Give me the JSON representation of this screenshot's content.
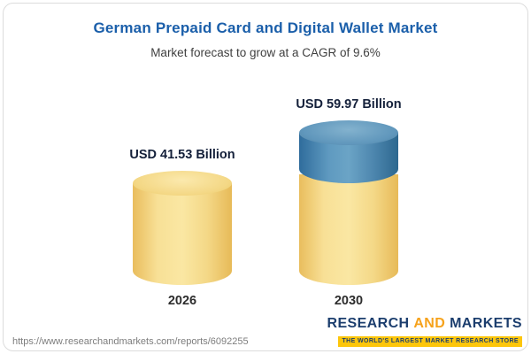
{
  "chart_data": {
    "type": "bar",
    "subtype": "3d-cylinder",
    "title": "German Prepaid Card and Digital Wallet Market",
    "subtitle": "Market forecast to grow at a CAGR of 9.6%",
    "cagr": "9.6%",
    "unit": "USD Billion",
    "categories": [
      "2026",
      "2030"
    ],
    "values": [
      41.53,
      59.97
    ],
    "value_labels": [
      "USD 41.53 Billion",
      "USD 59.97 Billion"
    ],
    "axes": "none",
    "legend": "none",
    "colors": {
      "cylinder_yellow": "#f6d57c",
      "cylinder_blue": "#4c86ae",
      "title": "#1b5faa"
    },
    "highlight_segment": {
      "bar_index": 1,
      "from_value": 41.53,
      "note": "top segment of 2030 cylinder shown in blue, representing growth above the 2026 level"
    }
  },
  "footer": {
    "url": "https://www.researchandmarkets.com/reports/6092255",
    "logo": {
      "research": "RESEARCH",
      "and": "AND",
      "markets": "MARKETS",
      "tagline": "THE WORLD'S LARGEST MARKET RESEARCH STORE"
    }
  }
}
